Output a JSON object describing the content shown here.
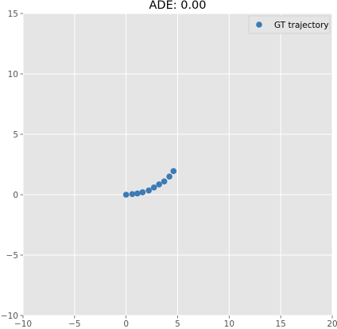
{
  "chart_data": {
    "type": "scatter",
    "title": "ADE: 0.00",
    "xlabel": "",
    "ylabel": "",
    "xlim": [
      -10,
      20
    ],
    "ylim": [
      -10,
      15
    ],
    "xticks": [
      -10,
      -5,
      0,
      5,
      10,
      15,
      20
    ],
    "yticks": [
      -10,
      -5,
      0,
      5,
      10,
      15
    ],
    "xtick_labels": [
      "−10",
      "−5",
      "0",
      "5",
      "10",
      "15",
      "20"
    ],
    "ytick_labels": [
      "−10",
      "−5",
      "0",
      "5",
      "10",
      "15"
    ],
    "grid": true,
    "legend_position": "top-right",
    "series": [
      {
        "name": "GT trajectory",
        "color": "#3b7bb5",
        "x": [
          0.0,
          0.6,
          1.1,
          1.6,
          2.2,
          2.7,
          3.2,
          3.7,
          4.2,
          4.6
        ],
        "y": [
          0.0,
          0.05,
          0.1,
          0.2,
          0.35,
          0.6,
          0.85,
          1.1,
          1.5,
          1.95
        ]
      }
    ]
  }
}
